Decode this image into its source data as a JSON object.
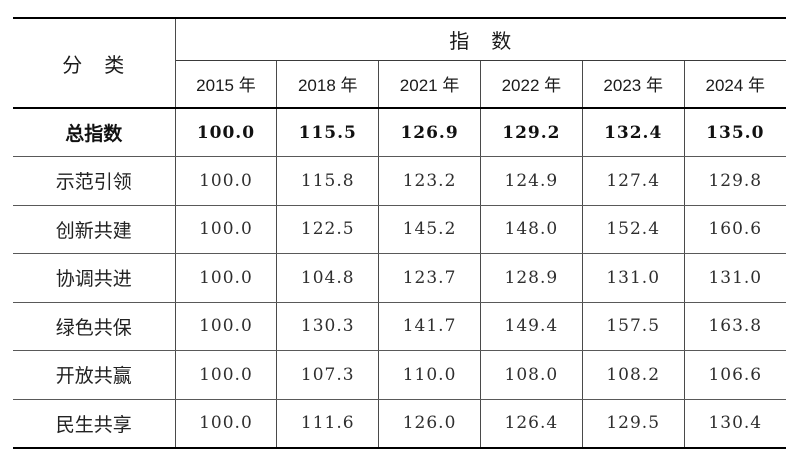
{
  "page": {
    "background": "#ffffff"
  },
  "chart_data": {
    "type": "table",
    "header": {
      "category": "分　类",
      "group": "指　数"
    },
    "columns": [
      "2015 年",
      "2018 年",
      "2021 年",
      "2022 年",
      "2023 年",
      "2024 年"
    ],
    "series": [
      {
        "name": "总指数",
        "bold": true,
        "values": [
          100.0,
          115.5,
          126.9,
          129.2,
          132.4,
          135.0
        ]
      },
      {
        "name": "示范引领",
        "bold": false,
        "values": [
          100.0,
          115.8,
          123.2,
          124.9,
          127.4,
          129.8
        ]
      },
      {
        "name": "创新共建",
        "bold": false,
        "values": [
          100.0,
          122.5,
          145.2,
          148.0,
          152.4,
          160.6
        ]
      },
      {
        "name": "协调共进",
        "bold": false,
        "values": [
          100.0,
          104.8,
          123.7,
          128.9,
          131.0,
          131.0
        ]
      },
      {
        "name": "绿色共保",
        "bold": false,
        "values": [
          100.0,
          130.3,
          141.7,
          149.4,
          157.5,
          163.8
        ]
      },
      {
        "name": "开放共赢",
        "bold": false,
        "values": [
          100.0,
          107.3,
          110.0,
          108.0,
          108.2,
          106.6
        ]
      },
      {
        "name": "民生共享",
        "bold": false,
        "values": [
          100.0,
          111.6,
          126.0,
          126.4,
          129.5,
          130.4
        ]
      }
    ],
    "value_format": "one-decimal",
    "layout": {
      "base_year_note": "2015 = 100.0",
      "grid": "horizontal-and-vertical",
      "outer_left_right_border": "none"
    },
    "colors": {
      "text": "#1a1a1a",
      "line_thick": "#000000",
      "line_thin": "#595959",
      "background": "#ffffff"
    }
  }
}
